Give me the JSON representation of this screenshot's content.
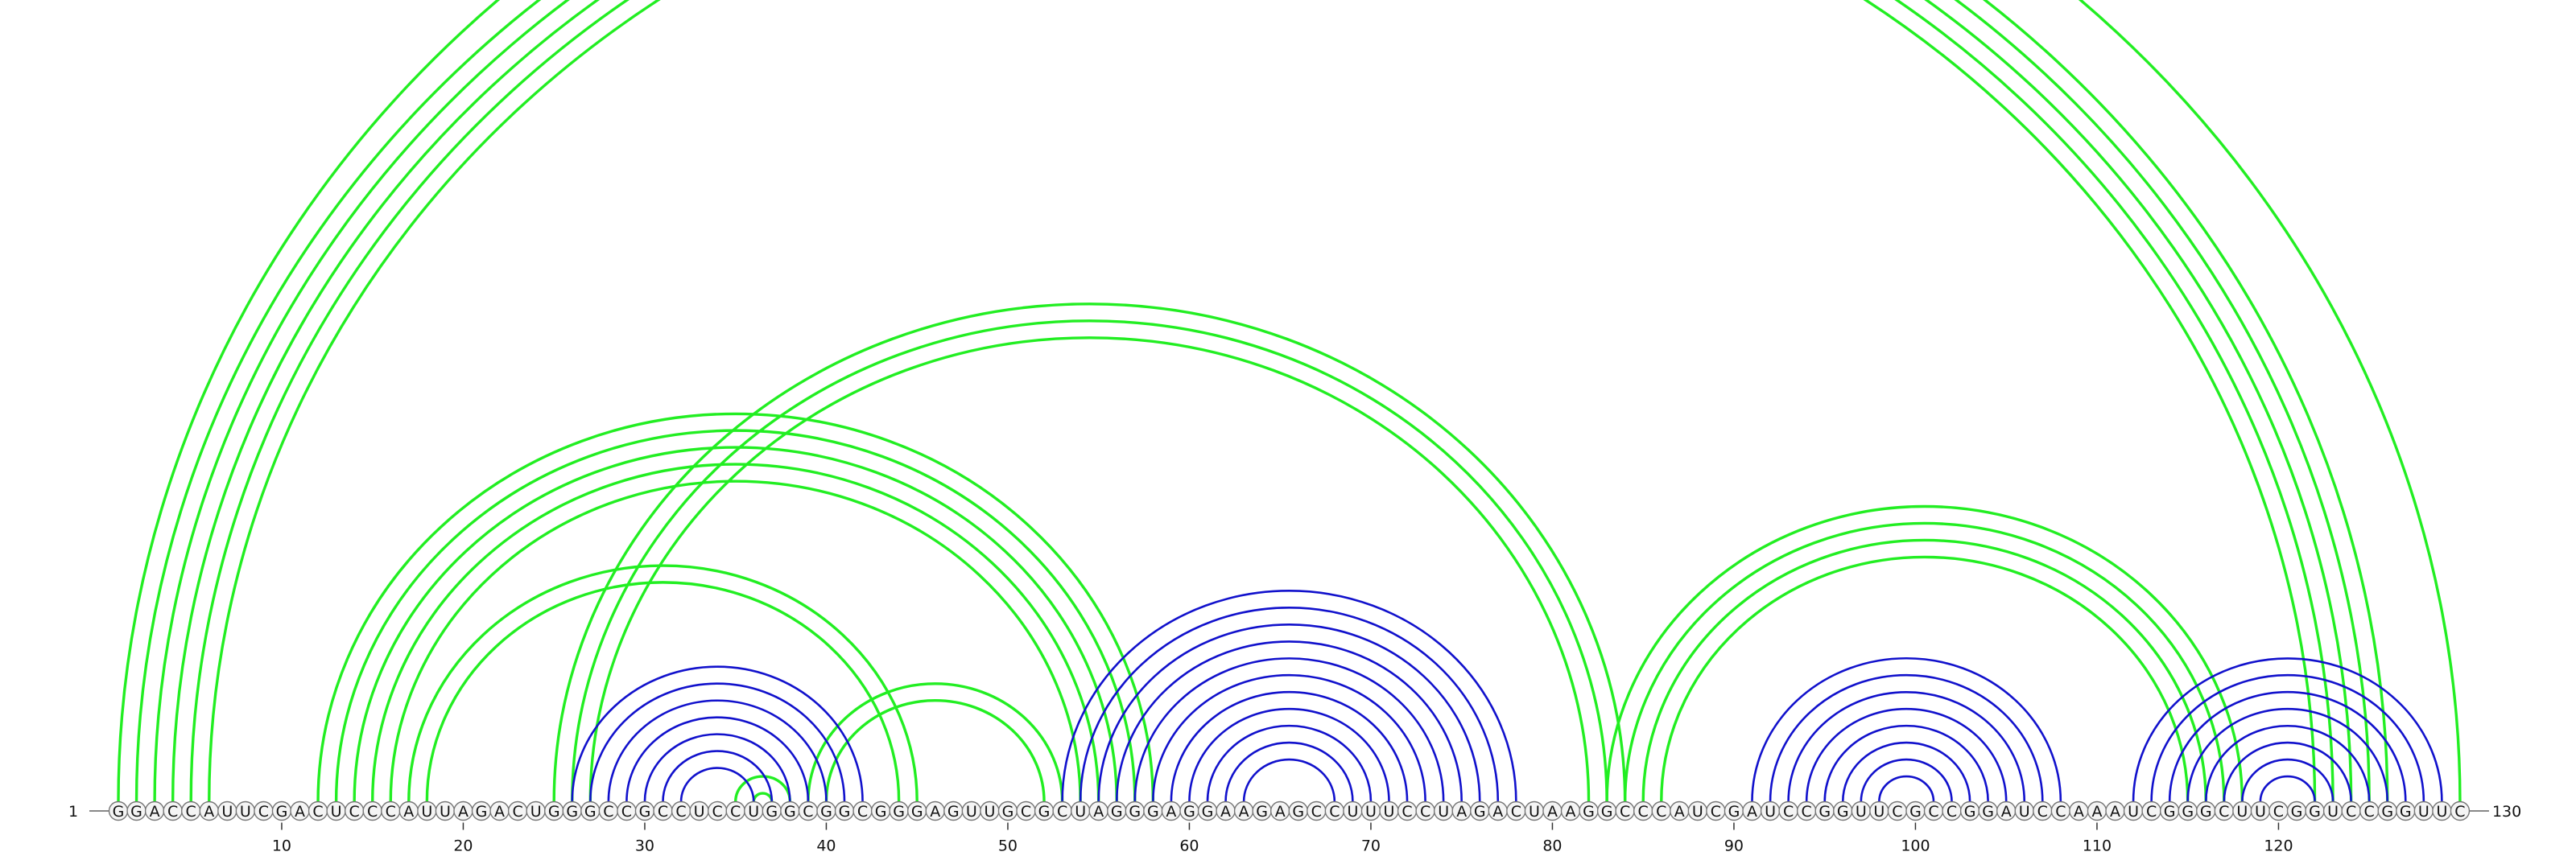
{
  "sequence": "GGACCAUUCGACUCCCAUUAGACUGGGCCGCCUCCUGGCGGCGGGAGUUGCGCUAGGGAGGAAGAGCCUUUCCUAGACUAAGGCCCAUCGAUCCGGUUCGCCGGAUCCAAAUCGGGCUUCGGUCCGGUUC",
  "labels": {
    "start_index": "1",
    "end_index": "130",
    "ticks": [
      10,
      20,
      30,
      40,
      50,
      60,
      70,
      80,
      90,
      100,
      110,
      120
    ]
  },
  "colors": {
    "long_range": "#22ee22",
    "local_helix": "#1111cc",
    "backbone": "#888888"
  },
  "helices": [
    {
      "color": "long_range",
      "pairs": [
        [
          1,
          130
        ],
        [
          2,
          126
        ],
        [
          3,
          125
        ],
        [
          4,
          124
        ],
        [
          5,
          123
        ],
        [
          6,
          122
        ]
      ]
    },
    {
      "color": "long_range",
      "pairs": [
        [
          12,
          58
        ],
        [
          13,
          57
        ],
        [
          14,
          56
        ],
        [
          15,
          55
        ],
        [
          16,
          54
        ]
      ]
    },
    {
      "color": "long_range",
      "pairs": [
        [
          17,
          45
        ],
        [
          18,
          44
        ]
      ]
    },
    {
      "color": "long_range",
      "pairs": [
        [
          25,
          84
        ],
        [
          26,
          83
        ],
        [
          27,
          82
        ]
      ]
    },
    {
      "color": "long_range",
      "pairs": [
        [
          35,
          38
        ],
        [
          36,
          37
        ]
      ]
    },
    {
      "color": "long_range",
      "pairs": [
        [
          39,
          53
        ],
        [
          40,
          52
        ]
      ]
    },
    {
      "color": "long_range",
      "pairs": [
        [
          83,
          118
        ],
        [
          84,
          117
        ],
        [
          85,
          116
        ],
        [
          86,
          115
        ]
      ]
    },
    {
      "color": "local_helix",
      "pairs": [
        [
          26,
          42
        ],
        [
          27,
          41
        ],
        [
          28,
          40
        ],
        [
          29,
          39
        ],
        [
          30,
          38
        ],
        [
          31,
          37
        ],
        [
          32,
          36
        ]
      ]
    },
    {
      "color": "local_helix",
      "pairs": [
        [
          53,
          78
        ],
        [
          54,
          77
        ],
        [
          55,
          76
        ],
        [
          56,
          75
        ],
        [
          57,
          74
        ],
        [
          58,
          73
        ],
        [
          59,
          72
        ]
      ]
    },
    {
      "color": "local_helix",
      "pairs": [
        [
          60,
          71
        ],
        [
          61,
          70
        ],
        [
          62,
          69
        ],
        [
          63,
          68
        ]
      ]
    },
    {
      "color": "local_helix",
      "pairs": [
        [
          91,
          108
        ],
        [
          92,
          107
        ],
        [
          93,
          106
        ],
        [
          94,
          105
        ],
        [
          95,
          104
        ],
        [
          96,
          103
        ],
        [
          97,
          102
        ],
        [
          98,
          101
        ]
      ]
    },
    {
      "color": "local_helix",
      "pairs": [
        [
          112,
          129
        ],
        [
          113,
          128
        ],
        [
          114,
          127
        ],
        [
          115,
          126
        ],
        [
          116,
          125
        ],
        [
          117,
          124
        ],
        [
          118,
          123
        ],
        [
          119,
          122
        ]
      ]
    }
  ]
}
